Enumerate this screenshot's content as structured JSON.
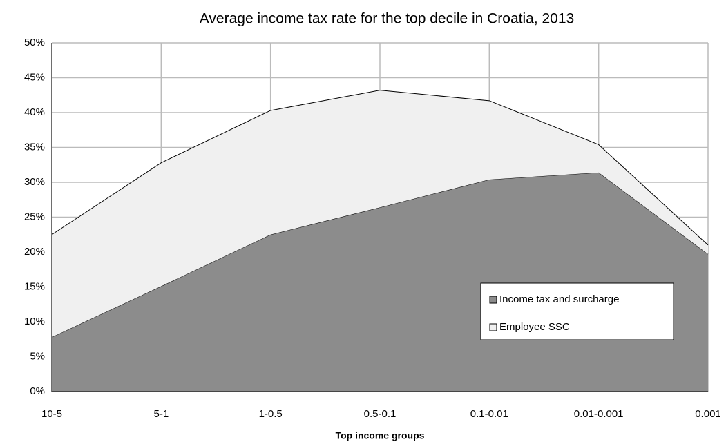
{
  "chart_data": {
    "type": "stacked-area",
    "title": "Average income tax rate for the top decile in Croatia, 2013",
    "x_label": "Top income groups",
    "categories": [
      "10-5",
      "5-1",
      "1-0.5",
      "0.5-0.1",
      "0.1-0.01",
      "0.01-0.001",
      "0.001"
    ],
    "series": [
      {
        "name": "Income tax and surcharge",
        "color": "#8c8c8c",
        "values": [
          7.8,
          15.1,
          22.5,
          26.4,
          30.4,
          31.4,
          19.7
        ]
      },
      {
        "name": "Employee SSC",
        "color": "#f0f0f0",
        "values": [
          14.7,
          17.7,
          17.8,
          16.8,
          11.3,
          4.0,
          1.3
        ]
      }
    ],
    "ylim": [
      0,
      50
    ],
    "yticks": [
      {
        "value": 0,
        "label": "0%"
      },
      {
        "value": 5,
        "label": "5%"
      },
      {
        "value": 10,
        "label": "10%"
      },
      {
        "value": 15,
        "label": "15%"
      },
      {
        "value": 20,
        "label": "20%"
      },
      {
        "value": 25,
        "label": "25%"
      },
      {
        "value": 30,
        "label": "30%"
      },
      {
        "value": 35,
        "label": "35%"
      },
      {
        "value": 40,
        "label": "40%"
      },
      {
        "value": 45,
        "label": "45%"
      },
      {
        "value": 50,
        "label": "50%"
      }
    ],
    "grid": true
  }
}
